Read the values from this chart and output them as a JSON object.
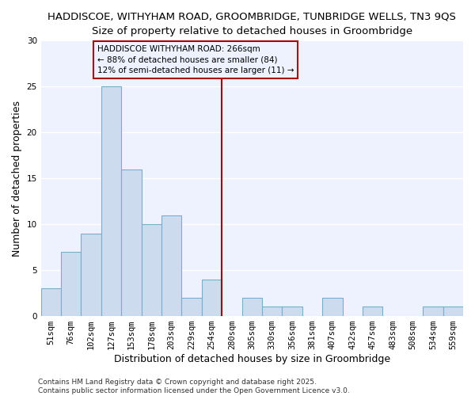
{
  "title_line1": "HADDISCOE, WITHYHAM ROAD, GROOMBRIDGE, TUNBRIDGE WELLS, TN3 9QS",
  "title_line2": "Size of property relative to detached houses in Groombridge",
  "xlabel": "Distribution of detached houses by size in Groombridge",
  "ylabel": "Number of detached properties",
  "bar_color": "#ccdcee",
  "bar_edge_color": "#7aadcc",
  "categories": [
    "51sqm",
    "76sqm",
    "102sqm",
    "127sqm",
    "153sqm",
    "178sqm",
    "203sqm",
    "229sqm",
    "254sqm",
    "280sqm",
    "305sqm",
    "330sqm",
    "356sqm",
    "381sqm",
    "407sqm",
    "432sqm",
    "457sqm",
    "483sqm",
    "508sqm",
    "534sqm",
    "559sqm"
  ],
  "values": [
    3,
    7,
    9,
    25,
    16,
    10,
    11,
    2,
    4,
    0,
    2,
    1,
    1,
    0,
    2,
    0,
    1,
    0,
    0,
    1,
    1
  ],
  "ylim": [
    0,
    30
  ],
  "yticks": [
    0,
    5,
    10,
    15,
    20,
    25,
    30
  ],
  "vline_x": 8.5,
  "vline_color": "#990000",
  "annotation_text": "HADDISCOE WITHYHAM ROAD: 266sqm\n← 88% of detached houses are smaller (84)\n12% of semi-detached houses are larger (11) →",
  "annotation_box_color": "#aa0000",
  "footer_text": "Contains HM Land Registry data © Crown copyright and database right 2025.\nContains public sector information licensed under the Open Government Licence v3.0.",
  "background_color": "#ffffff",
  "plot_bg_color": "#eef2ff",
  "grid_color": "#ffffff",
  "title_fontsize": 9.5,
  "subtitle_fontsize": 9,
  "tick_fontsize": 7.5,
  "label_fontsize": 9,
  "footer_fontsize": 6.5
}
